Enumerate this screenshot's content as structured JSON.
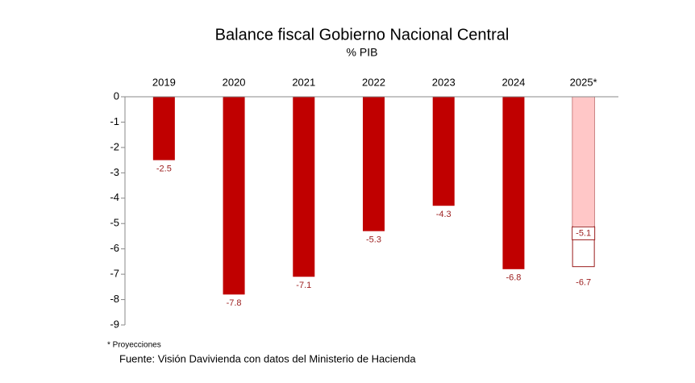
{
  "chart_data": {
    "type": "bar",
    "title": "Balance fiscal Gobierno Nacional Central",
    "subtitle": "% PIB",
    "categories": [
      "2019",
      "2020",
      "2021",
      "2022",
      "2023",
      "2024",
      "2025*"
    ],
    "values": [
      -2.5,
      -7.8,
      -7.1,
      -5.3,
      -4.3,
      -6.8,
      -5.1
    ],
    "colors": [
      "#c00000",
      "#c00000",
      "#c00000",
      "#c00000",
      "#c00000",
      "#c00000",
      "#ffc7c7"
    ],
    "range_values": [
      null,
      null,
      null,
      null,
      null,
      null,
      -6.7
    ],
    "range_color": "#ffffff",
    "range_border": "#9b1c1c",
    "ylim": [
      -9,
      0
    ],
    "yticks": [
      0,
      -1,
      -2,
      -3,
      -4,
      -5,
      -6,
      -7,
      -8,
      -9
    ],
    "grid": false,
    "footnote": "* Proyecciones",
    "source": "Fuente: Visión Davivienda con datos del Ministerio de Hacienda"
  }
}
